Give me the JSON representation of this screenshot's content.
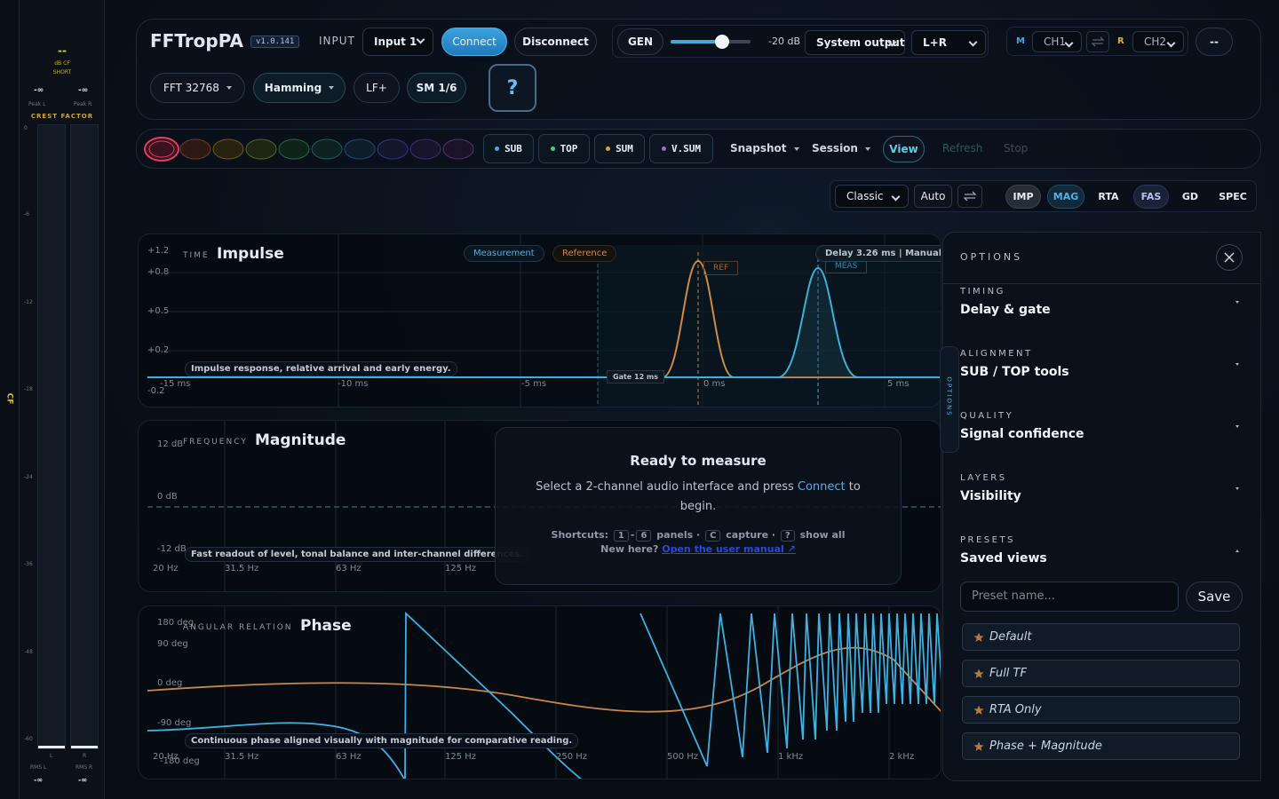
{
  "meter": {
    "cf": "--",
    "cf_unit": "dB CF",
    "cf_mode": "SHORT",
    "peak_l": "-∞",
    "peak_r": "-∞",
    "peak_l_label": "Peak L",
    "peak_r_label": "Peak R",
    "title": "CREST FACTOR",
    "scale": [
      "0",
      "-6",
      "-12",
      "-18",
      "-24",
      "-36",
      "-48",
      "-60"
    ],
    "ch_l": "L",
    "ch_r": "R",
    "rms_l_label": "RMS L",
    "rms_r_label": "RMS R",
    "rms_l": "-∞",
    "rms_r": "-∞",
    "side_tab": "CF"
  },
  "header": {
    "app": "FFTropPA",
    "version": "v1.0.141",
    "input_label": "INPUT",
    "input": "Input 1",
    "connect": "Connect",
    "disconnect": "Disconnect",
    "gen": "GEN",
    "level": "-20 dB",
    "output": "System output",
    "routing": "L+R",
    "m": "M",
    "ch1": "CH1",
    "r": "R",
    "ch2": "CH2",
    "more": "--",
    "fft": "FFT 32768",
    "window": "Hamming",
    "lf": "LF+",
    "smoothing": "SM 1/6",
    "help": "?"
  },
  "toolbar": {
    "groups": [
      "SUB",
      "TOP",
      "SUM",
      "V.SUM"
    ],
    "snapshot": "Snapshot",
    "session": "Session",
    "view": "View",
    "refresh": "Refresh",
    "stop": "Stop"
  },
  "view_bar": {
    "layout": "Classic",
    "auto": "Auto",
    "tabs": [
      "IMP",
      "MAG",
      "RTA",
      "FAS",
      "GD",
      "SPEC"
    ]
  },
  "impulse": {
    "kicker": "TIME",
    "title": "Impulse",
    "measurement": "Measurement",
    "reference": "Reference",
    "delay": "Delay 3.26 ms | Manual",
    "y_labels": [
      "+1.2",
      "+0.8",
      "+0.5",
      "+0.2",
      "-0.2"
    ],
    "x_labels": [
      "-15 ms",
      "-10 ms",
      "-5 ms",
      "0 ms",
      "5 ms"
    ],
    "ref": "REF",
    "meas": "MEAS",
    "gate": "Gate 12 ms",
    "caption": "Impulse response, relative arrival and early energy."
  },
  "magnitude": {
    "kicker": "FREQUENCY",
    "title": "Magnitude",
    "y_labels": [
      "12 dB",
      "0 dB",
      "-12 dB"
    ],
    "x_labels": [
      "20 Hz",
      "31.5 Hz",
      "63 Hz",
      "125 Hz"
    ],
    "caption": "Fast readout of level, tonal balance and inter-channel differences."
  },
  "overlay": {
    "title": "Ready to measure",
    "text_before": "Select a 2-channel audio interface and press ",
    "text_link": "Connect",
    "text_after": " to begin.",
    "shortcuts": "Shortcuts:",
    "key_1": "1",
    "dash": "-",
    "key_6": "6",
    "panels": "panels",
    "dot1": "·",
    "key_c": "C",
    "capture": "capture",
    "dot2": "·",
    "key_help": "?",
    "show_all": "show all",
    "new_here": "New here?",
    "manual": "Open the user manual ↗"
  },
  "phase": {
    "kicker": "ANGULAR RELATION",
    "title": "Phase",
    "y_labels": [
      "180 deg",
      "90 deg",
      "0 deg",
      "-90 deg",
      "-180 deg"
    ],
    "x_labels": [
      "20 Hz",
      "31.5 Hz",
      "63 Hz",
      "125 Hz",
      "250 Hz",
      "500 Hz",
      "1 kHz",
      "2 kHz"
    ],
    "caption": "Continuous phase aligned visually with magnitude for comparative reading."
  },
  "options": {
    "title": "OPTIONS",
    "tab": "OPTIONS",
    "sections": [
      {
        "kicker": "TIMING",
        "title": "Delay & gate"
      },
      {
        "kicker": "ALIGNMENT",
        "title": "SUB / TOP tools"
      },
      {
        "kicker": "QUALITY",
        "title": "Signal confidence"
      },
      {
        "kicker": "LAYERS",
        "title": "Visibility"
      },
      {
        "kicker": "PRESETS",
        "title": "Saved views"
      }
    ],
    "preset_placeholder": "Preset name...",
    "save": "Save",
    "presets": [
      "Default",
      "Full TF",
      "RTA Only",
      "Phase + Magnitude"
    ]
  }
}
